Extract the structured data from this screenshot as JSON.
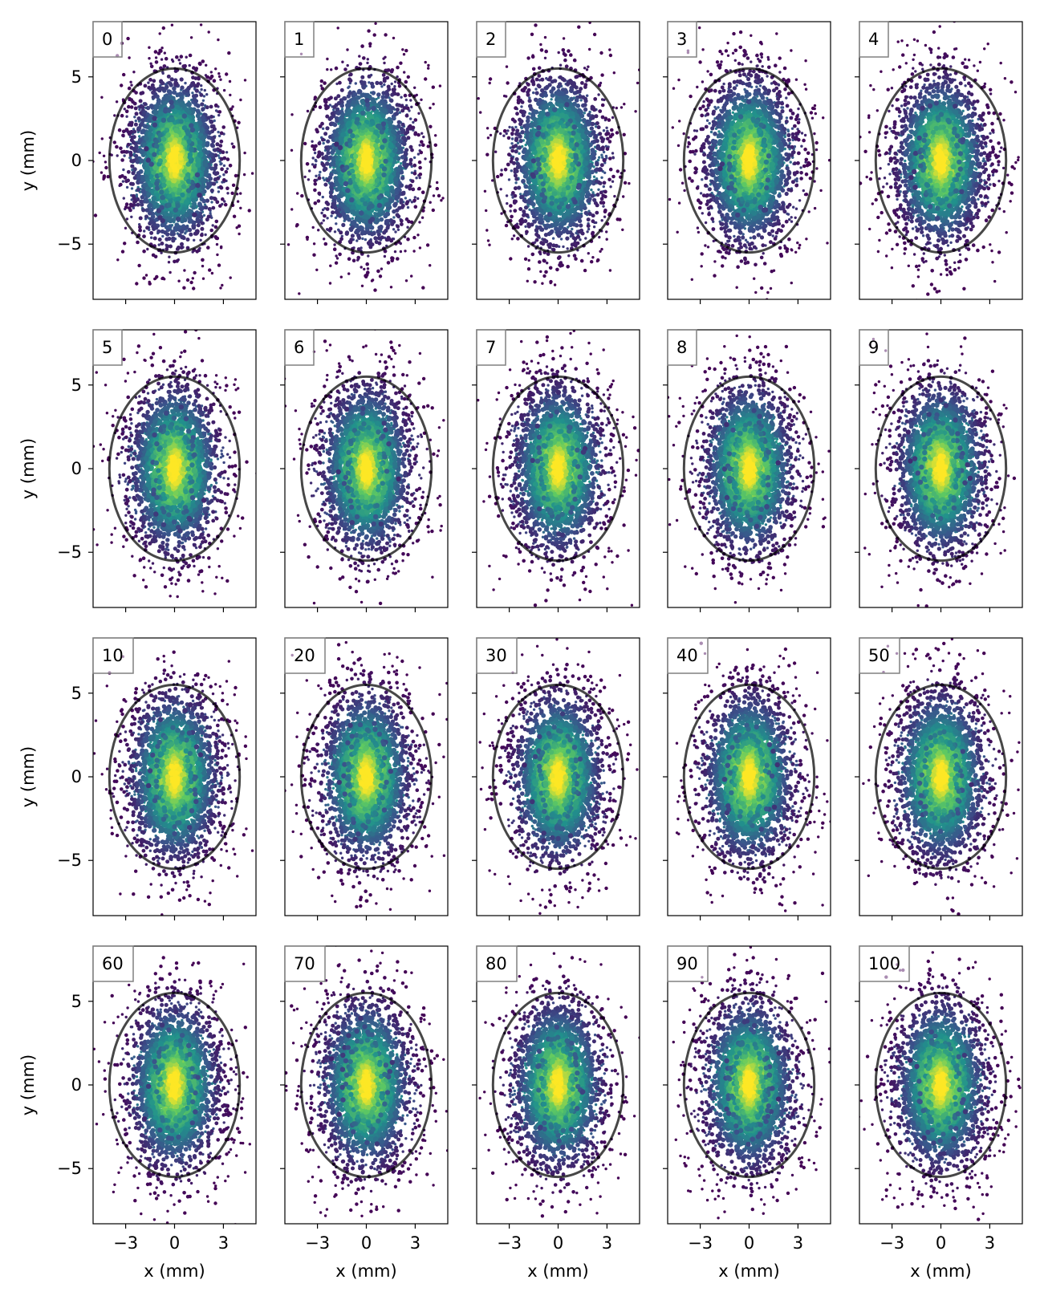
{
  "figure": {
    "x_label": "x (mm)",
    "y_label": "y (mm)",
    "x_ticks": [
      -3,
      0,
      3
    ],
    "x_tick_labels": [
      "−3",
      "0",
      "3"
    ],
    "y_ticks": [
      -5,
      0,
      5
    ],
    "y_tick_labels": [
      "−5",
      "0",
      "5"
    ]
  },
  "chart_data": {
    "type": "scatter",
    "layout": {
      "rows": 4,
      "cols": 5
    },
    "xlim": [
      -5,
      5
    ],
    "ylim": [
      -8.3,
      8.3
    ],
    "colormap": "viridis",
    "colors": {
      "low": "#440154",
      "mid_low": "#3b528b",
      "mid": "#21918c",
      "mid_high": "#5ec962",
      "high": "#fde725",
      "ellipse": "#000000",
      "label_box_edge": "#808080"
    },
    "ellipse": {
      "center": [
        0,
        0
      ],
      "semi_axis_x": 4.0,
      "semi_axis_y": 5.5
    },
    "panels": [
      {
        "label": "0"
      },
      {
        "label": "1"
      },
      {
        "label": "2"
      },
      {
        "label": "3"
      },
      {
        "label": "4"
      },
      {
        "label": "5"
      },
      {
        "label": "6"
      },
      {
        "label": "7"
      },
      {
        "label": "8"
      },
      {
        "label": "9"
      },
      {
        "label": "10"
      },
      {
        "label": "20"
      },
      {
        "label": "30"
      },
      {
        "label": "40"
      },
      {
        "label": "50"
      },
      {
        "label": "60"
      },
      {
        "label": "70"
      },
      {
        "label": "80"
      },
      {
        "label": "90"
      },
      {
        "label": "100"
      }
    ]
  }
}
